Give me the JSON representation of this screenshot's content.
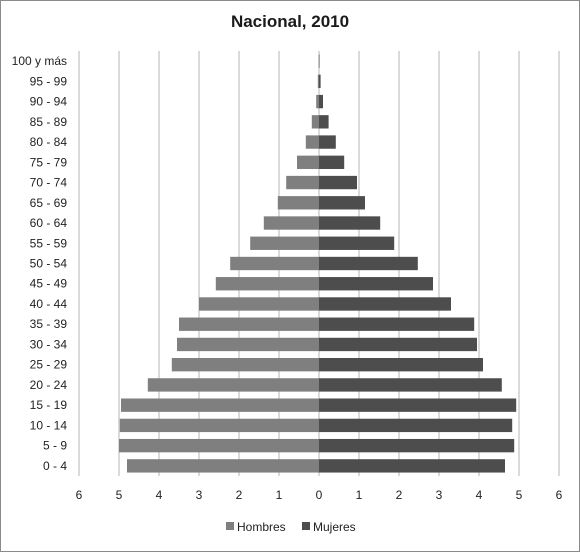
{
  "chart_data": {
    "type": "bar",
    "orientation": "horizontal",
    "title": "Nacional, 2010",
    "categories": [
      "0 - 4",
      "5 - 9",
      "10 - 14",
      "15 - 19",
      "20 - 24",
      "25 - 29",
      "30 - 34",
      "35 - 39",
      "40 - 44",
      "45 - 49",
      "50 - 54",
      "55 - 59",
      "60 - 64",
      "65 - 69",
      "70 - 74",
      "75 - 79",
      "80 - 84",
      "85 - 89",
      "90 - 94",
      "95 - 99",
      "100 y más"
    ],
    "series": [
      {
        "name": "Hombres",
        "color": "#7f7f7f",
        "values": [
          4.8,
          5.0,
          4.98,
          4.95,
          4.28,
          3.68,
          3.55,
          3.5,
          3.0,
          2.58,
          2.22,
          1.72,
          1.38,
          1.03,
          0.82,
          0.55,
          0.33,
          0.18,
          0.07,
          0.03,
          0.01
        ]
      },
      {
        "name": "Mujeres",
        "color": "#4d4d4d",
        "values": [
          4.65,
          4.88,
          4.83,
          4.93,
          4.57,
          4.1,
          3.95,
          3.88,
          3.3,
          2.85,
          2.47,
          1.88,
          1.53,
          1.15,
          0.95,
          0.63,
          0.42,
          0.24,
          0.1,
          0.04,
          0.01
        ]
      }
    ],
    "x_ticks": [
      "6",
      "5",
      "4",
      "3",
      "2",
      "1",
      "0",
      "1",
      "2",
      "3",
      "4",
      "5",
      "6"
    ],
    "xlim": [
      -6,
      6
    ],
    "grid": "vertical",
    "legend_position": "bottom"
  }
}
